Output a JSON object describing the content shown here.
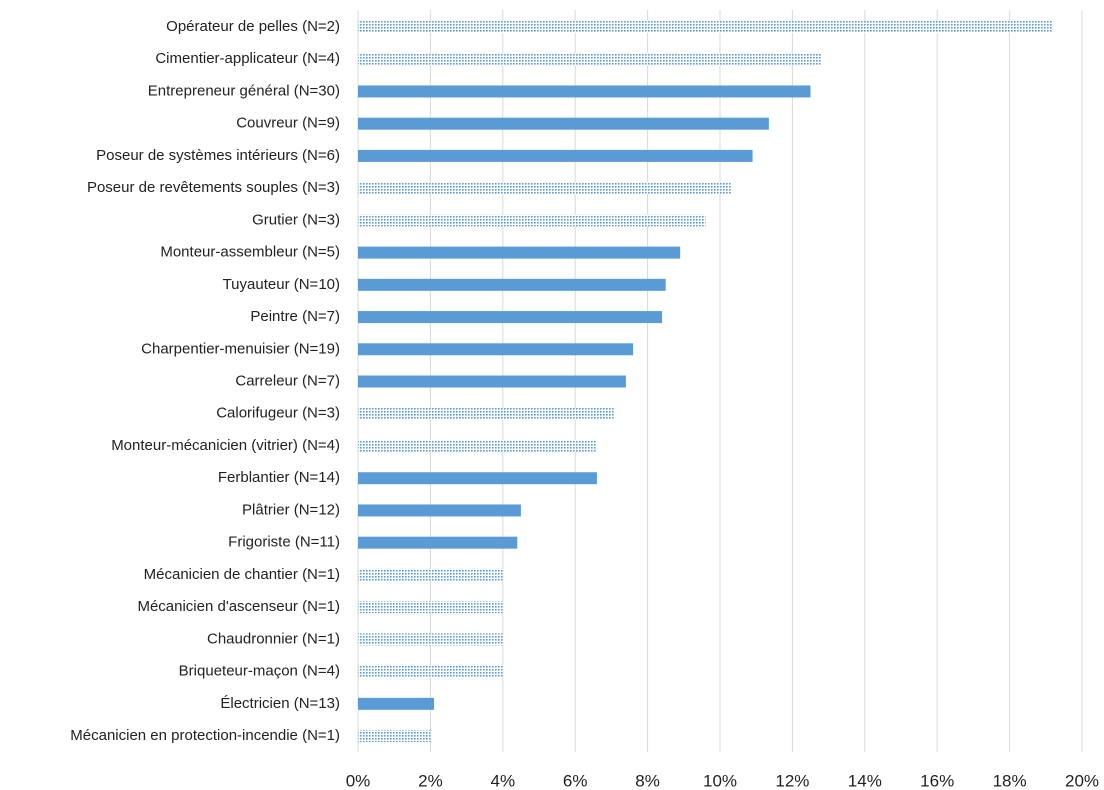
{
  "chart_data": {
    "type": "hbar",
    "categories": [
      "Opérateur de pelles (N=2)",
      "Cimentier-applicateur (N=4)",
      "Entrepreneur général (N=30)",
      "Couvreur (N=9)",
      "Poseur de systèmes intérieurs (N=6)",
      "Poseur de revêtements souples (N=3)",
      "Grutier (N=3)",
      "Monteur-assembleur (N=5)",
      "Tuyauteur (N=10)",
      "Peintre (N=7)",
      "Charpentier-menuisier (N=19)",
      "Carreleur (N=7)",
      "Calorifugeur (N=3)",
      "Monteur-mécanicien (vitrier) (N=4)",
      "Ferblantier (N=14)",
      "Plâtrier (N=12)",
      "Frigoriste (N=11)",
      "Mécanicien de chantier (N=1)",
      "Mécanicien d'ascenseur (N=1)",
      "Chaudronnier (N=1)",
      "Briqueteur-maçon (N=4)",
      "Électricien (N=13)",
      "Mécanicien en protection-incendie (N=1)"
    ],
    "values": [
      19.2,
      12.8,
      12.5,
      11.35,
      10.9,
      10.3,
      9.6,
      8.9,
      8.5,
      8.4,
      7.6,
      7.4,
      7.1,
      6.6,
      6.6,
      4.5,
      4.4,
      4.0,
      4.0,
      4.0,
      4.0,
      2.1,
      2.0
    ],
    "dotted": [
      true,
      true,
      false,
      false,
      false,
      true,
      true,
      false,
      false,
      false,
      false,
      false,
      true,
      true,
      false,
      false,
      false,
      true,
      true,
      true,
      true,
      false,
      true
    ],
    "color": "#5b9bd5",
    "xlim": [
      0,
      20
    ],
    "xticks": [
      {
        "value": 0,
        "label": "0%"
      },
      {
        "value": 2,
        "label": "2%"
      },
      {
        "value": 4,
        "label": "4%"
      },
      {
        "value": 6,
        "label": "6%"
      },
      {
        "value": 8,
        "label": "8%"
      },
      {
        "value": 10,
        "label": "10%"
      },
      {
        "value": 12,
        "label": "12%"
      },
      {
        "value": 14,
        "label": "14%"
      },
      {
        "value": 16,
        "label": "16%"
      },
      {
        "value": 18,
        "label": "18%"
      },
      {
        "value": 20,
        "label": "20%"
      }
    ],
    "grid": true
  }
}
